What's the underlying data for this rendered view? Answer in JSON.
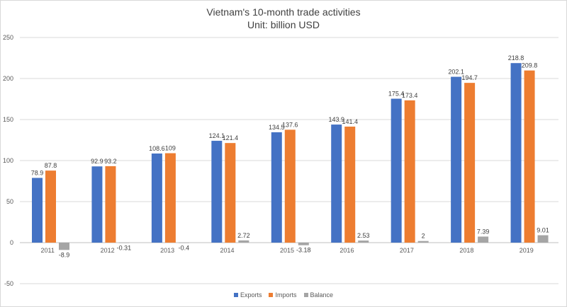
{
  "chart_data": {
    "type": "bar",
    "title": "Vietnam's 10-month trade activities",
    "subtitle": "Unit: billion USD",
    "categories": [
      "2011",
      "2012",
      "2013",
      "2014",
      "2015",
      "2016",
      "2017",
      "2018",
      "2019"
    ],
    "series": [
      {
        "name": "Exports",
        "color": "#4472c4",
        "values": [
          78.9,
          92.9,
          108.6,
          124.1,
          134.5,
          143.9,
          175.4,
          202.1,
          218.8
        ],
        "labels": [
          "78.9",
          "92.9",
          "108.6",
          "124.1",
          "134.5",
          "143.9",
          "175.4",
          "202.1",
          "218.8"
        ]
      },
      {
        "name": "Imports",
        "color": "#ed7d31",
        "values": [
          87.8,
          93.2,
          109,
          121.4,
          137.6,
          141.4,
          173.4,
          194.7,
          209.8
        ],
        "labels": [
          "87.8",
          "93.2",
          "109",
          "121.4",
          "137.6",
          "141.4",
          "173.4",
          "194.7",
          "209.8"
        ]
      },
      {
        "name": "Balance",
        "color": "#a5a5a5",
        "values": [
          -8.9,
          -0.31,
          -0.4,
          2.72,
          -3.18,
          2.53,
          2,
          7.39,
          9.01
        ],
        "labels": [
          "-8.9",
          "-0.31",
          "-0.4",
          "2.72",
          "-3.18",
          "2.53",
          "2",
          "7.39",
          "9.01"
        ]
      }
    ],
    "yticks": [
      250,
      200,
      150,
      100,
      50,
      0,
      -50
    ],
    "ylim": [
      -50,
      250
    ],
    "xlabel": "",
    "ylabel": "",
    "grid": true,
    "legend": "bottom-center"
  }
}
